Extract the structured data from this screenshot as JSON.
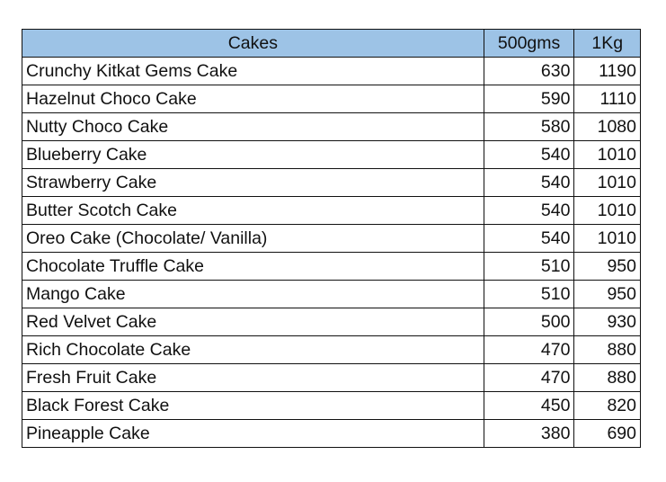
{
  "header": {
    "cakes": "Cakes",
    "half_kg": "500gms",
    "one_kg": "1Kg",
    "header_color": "#9dc3e6"
  },
  "rows": [
    {
      "name": "Crunchy Kitkat Gems Cake",
      "half_kg": "630",
      "one_kg": "1190"
    },
    {
      "name": "Hazelnut Choco Cake",
      "half_kg": "590",
      "one_kg": "1110"
    },
    {
      "name": "Nutty Choco Cake",
      "half_kg": "580",
      "one_kg": "1080"
    },
    {
      "name": "Blueberry Cake",
      "half_kg": "540",
      "one_kg": "1010"
    },
    {
      "name": "Strawberry Cake",
      "half_kg": "540",
      "one_kg": "1010"
    },
    {
      "name": "Butter Scotch Cake",
      "half_kg": "540",
      "one_kg": "1010"
    },
    {
      "name": "Oreo Cake (Chocolate/ Vanilla)",
      "half_kg": "540",
      "one_kg": "1010"
    },
    {
      "name": "Chocolate Truffle Cake",
      "half_kg": "510",
      "one_kg": "950"
    },
    {
      "name": "Mango Cake",
      "half_kg": "510",
      "one_kg": "950"
    },
    {
      "name": "Red Velvet Cake",
      "half_kg": "500",
      "one_kg": "930"
    },
    {
      "name": "Rich Chocolate Cake",
      "half_kg": "470",
      "one_kg": "880"
    },
    {
      "name": "Fresh Fruit Cake",
      "half_kg": "470",
      "one_kg": "880"
    },
    {
      "name": "Black Forest Cake",
      "half_kg": "450",
      "one_kg": "820"
    },
    {
      "name": "Pineapple Cake",
      "half_kg": "380",
      "one_kg": "690"
    }
  ]
}
